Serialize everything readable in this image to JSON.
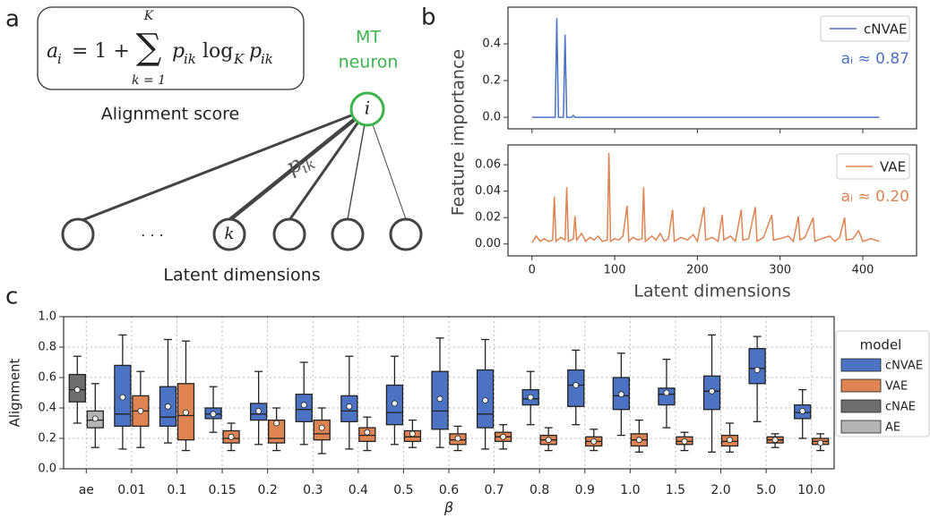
{
  "panel_labels": [
    "a",
    "b",
    "c"
  ],
  "diagram": {
    "formula": [
      "a",
      "i",
      "= 1 +",
      "∑",
      "K",
      "k = 1",
      "p",
      "ik",
      "log",
      "K",
      "p",
      "ik"
    ],
    "formula_caption": "Alignment score",
    "neuron_label": [
      "MT",
      "neuron"
    ],
    "neuron_symbol": "i",
    "weight_label": [
      "p",
      "ik"
    ],
    "latent_symbol": "k",
    "ellipsis": "·     ·     ·",
    "latent_caption": "Latent dimensions"
  },
  "chart_data": [
    {
      "type": "line",
      "x": [
        0,
        28,
        30,
        32,
        38,
        40,
        42,
        48,
        50,
        52,
        420
      ],
      "series": [
        {
          "name": "cNVAE",
          "color": "#4c72c4",
          "values": [
            0,
            0,
            0.54,
            0,
            0,
            0.45,
            0,
            0,
            0.01,
            0,
            0
          ]
        }
      ],
      "annotation": "aᵢ ≈ 0.87",
      "legend": "upper right",
      "xlim": [
        -29,
        465
      ],
      "ylim": [
        -0.063,
        0.6
      ],
      "yticks": [
        {
          "value": 0,
          "label": "0.0"
        },
        {
          "value": 0.2,
          "label": "0.2"
        },
        {
          "value": 0.4,
          "label": "0.4"
        }
      ]
    },
    {
      "type": "line",
      "x_label": "Latent dimensions",
      "y_label": "Feature importance",
      "x": [
        0,
        5,
        10,
        15,
        20,
        25,
        27,
        29,
        35,
        40,
        42,
        44,
        50,
        52,
        54,
        60,
        65,
        70,
        75,
        80,
        85,
        91,
        93,
        95,
        100,
        105,
        110,
        115,
        117,
        122,
        128,
        133,
        135,
        137,
        145,
        150,
        155,
        160,
        165,
        170,
        172,
        180,
        188,
        195,
        200,
        208,
        210,
        218,
        225,
        230,
        232,
        240,
        246,
        253,
        255,
        262,
        270,
        272,
        280,
        290,
        292,
        300,
        310,
        316,
        322,
        324,
        330,
        340,
        342,
        350,
        360,
        366,
        372,
        378,
        380,
        388,
        395,
        400,
        410,
        420
      ],
      "series": [
        {
          "name": "VAE",
          "color": "#dd8452",
          "values": [
            0.001,
            0.006,
            0.002,
            0.004,
            0.002,
            0.003,
            0.036,
            0.002,
            0.005,
            0.003,
            0.043,
            0.002,
            0.004,
            0.021,
            0.003,
            0.008,
            0.002,
            0.005,
            0.003,
            0.006,
            0.002,
            0.003,
            0.069,
            0.002,
            0.004,
            0.003,
            0.006,
            0.029,
            0.002,
            0.005,
            0.003,
            0.004,
            0.043,
            0.002,
            0.006,
            0.003,
            0.008,
            0.002,
            0.004,
            0.026,
            0.002,
            0.005,
            0.003,
            0.007,
            0.002,
            0.028,
            0.003,
            0.005,
            0.002,
            0.022,
            0.003,
            0.006,
            0.002,
            0.026,
            0.003,
            0.004,
            0.028,
            0.002,
            0.005,
            0.022,
            0.003,
            0.004,
            0.006,
            0.002,
            0.021,
            0.003,
            0.005,
            0.02,
            0.002,
            0.004,
            0.006,
            0.002,
            0.005,
            0.02,
            0.003,
            0.004,
            0.01,
            0.002,
            0.004,
            0.002
          ]
        }
      ],
      "annotation": "aᵢ ≈ 0.20",
      "legend": "upper right",
      "xlim": [
        -29,
        465
      ],
      "xticks": [
        0,
        100,
        200,
        300,
        400
      ],
      "ylim": [
        -0.009,
        0.075
      ],
      "yticks": [
        {
          "value": 0,
          "label": "0.00"
        },
        {
          "value": 0.02,
          "label": "0.02"
        },
        {
          "value": 0.04,
          "label": "0.04"
        },
        {
          "value": 0.06,
          "label": "0.06"
        }
      ]
    },
    {
      "type": "box",
      "x_label": "β",
      "y_label": "Alignment",
      "categories": [
        "ae",
        "0.01",
        "0.1",
        "0.15",
        "0.2",
        "0.3",
        "0.4",
        "0.5",
        "0.6",
        "0.7",
        "0.8",
        "0.9",
        "1.0",
        "1.5",
        "2.0",
        "5.0",
        "10.0"
      ],
      "series": [
        {
          "name": "cNVAE",
          "color": "#4c72c4",
          "values": [
            null,
            {
              "min": 0.13,
              "q1": 0.28,
              "median": 0.36,
              "q3": 0.68,
              "max": 0.88,
              "mean": 0.47
            },
            {
              "min": 0.17,
              "q1": 0.28,
              "median": 0.34,
              "q3": 0.54,
              "max": 0.85,
              "mean": 0.41
            },
            {
              "min": 0.24,
              "q1": 0.33,
              "median": 0.36,
              "q3": 0.4,
              "max": 0.54,
              "mean": 0.36
            },
            {
              "min": 0.16,
              "q1": 0.32,
              "median": 0.36,
              "q3": 0.43,
              "max": 0.64,
              "mean": 0.38
            },
            {
              "min": 0.16,
              "q1": 0.31,
              "median": 0.39,
              "q3": 0.49,
              "max": 0.7,
              "mean": 0.42
            },
            {
              "min": 0.13,
              "q1": 0.31,
              "median": 0.38,
              "q3": 0.48,
              "max": 0.74,
              "mean": 0.41
            },
            {
              "min": 0.16,
              "q1": 0.29,
              "median": 0.37,
              "q3": 0.55,
              "max": 0.74,
              "mean": 0.43
            },
            {
              "min": 0.14,
              "q1": 0.26,
              "median": 0.38,
              "q3": 0.64,
              "max": 0.86,
              "mean": 0.46
            },
            {
              "min": 0.13,
              "q1": 0.27,
              "median": 0.36,
              "q3": 0.65,
              "max": 0.85,
              "mean": 0.45
            },
            {
              "min": 0.29,
              "q1": 0.42,
              "median": 0.46,
              "q3": 0.52,
              "max": 0.64,
              "mean": 0.47
            },
            {
              "min": 0.29,
              "q1": 0.41,
              "median": 0.55,
              "q3": 0.65,
              "max": 0.78,
              "mean": 0.55
            },
            {
              "min": 0.22,
              "q1": 0.39,
              "median": 0.48,
              "q3": 0.6,
              "max": 0.76,
              "mean": 0.49
            },
            {
              "min": 0.27,
              "q1": 0.42,
              "median": 0.49,
              "q3": 0.53,
              "max": 0.72,
              "mean": 0.5
            },
            {
              "min": 0.11,
              "q1": 0.39,
              "median": 0.51,
              "q3": 0.61,
              "max": 0.88,
              "mean": 0.51
            },
            {
              "min": 0.31,
              "q1": 0.56,
              "median": 0.66,
              "q3": 0.79,
              "max": 0.87,
              "mean": 0.65
            },
            {
              "min": 0.2,
              "q1": 0.33,
              "median": 0.37,
              "q3": 0.42,
              "max": 0.52,
              "mean": 0.38
            }
          ]
        },
        {
          "name": "VAE",
          "color": "#dd8452",
          "values": [
            null,
            {
              "min": 0.14,
              "q1": 0.28,
              "median": 0.38,
              "q3": 0.48,
              "max": 0.64,
              "mean": 0.38
            },
            {
              "min": 0.12,
              "q1": 0.19,
              "median": 0.35,
              "q3": 0.56,
              "max": 0.84,
              "mean": 0.37
            },
            {
              "min": 0.12,
              "q1": 0.17,
              "median": 0.2,
              "q3": 0.25,
              "max": 0.3,
              "mean": 0.21
            },
            {
              "min": 0.12,
              "q1": 0.17,
              "median": 0.2,
              "q3": 0.32,
              "max": 0.4,
              "mean": 0.3
            },
            {
              "min": 0.1,
              "q1": 0.19,
              "median": 0.23,
              "q3": 0.32,
              "max": 0.4,
              "mean": 0.27
            },
            {
              "min": 0.12,
              "q1": 0.18,
              "median": 0.22,
              "q3": 0.27,
              "max": 0.34,
              "mean": 0.24
            },
            {
              "min": 0.14,
              "q1": 0.18,
              "median": 0.21,
              "q3": 0.25,
              "max": 0.32,
              "mean": 0.23
            },
            {
              "min": 0.12,
              "q1": 0.16,
              "median": 0.19,
              "q3": 0.23,
              "max": 0.28,
              "mean": 0.2
            },
            {
              "min": 0.13,
              "q1": 0.18,
              "median": 0.21,
              "q3": 0.24,
              "max": 0.29,
              "mean": 0.21
            },
            {
              "min": 0.12,
              "q1": 0.16,
              "median": 0.19,
              "q3": 0.22,
              "max": 0.27,
              "mean": 0.19
            },
            {
              "min": 0.12,
              "q1": 0.15,
              "median": 0.18,
              "q3": 0.21,
              "max": 0.26,
              "mean": 0.18
            },
            {
              "min": 0.11,
              "q1": 0.15,
              "median": 0.19,
              "q3": 0.23,
              "max": 0.32,
              "mean": 0.19
            },
            {
              "min": 0.12,
              "q1": 0.16,
              "median": 0.18,
              "q3": 0.21,
              "max": 0.24,
              "mean": 0.18
            },
            {
              "min": 0.11,
              "q1": 0.15,
              "median": 0.18,
              "q3": 0.22,
              "max": 0.3,
              "mean": 0.19
            },
            {
              "min": 0.14,
              "q1": 0.17,
              "median": 0.19,
              "q3": 0.21,
              "max": 0.23,
              "mean": 0.19
            },
            {
              "min": 0.12,
              "q1": 0.16,
              "median": 0.18,
              "q3": 0.2,
              "max": 0.23,
              "mean": 0.17
            }
          ]
        },
        {
          "name": "cNAE",
          "color": "#6e6e6e",
          "values": [
            {
              "min": 0.3,
              "q1": 0.44,
              "median": 0.52,
              "q3": 0.62,
              "max": 0.74,
              "mean": 0.52
            },
            null,
            null,
            null,
            null,
            null,
            null,
            null,
            null,
            null,
            null,
            null,
            null,
            null,
            null,
            null,
            null
          ]
        },
        {
          "name": "AE",
          "color": "#b4b4b4",
          "values": [
            {
              "min": 0.14,
              "q1": 0.27,
              "median": 0.32,
              "q3": 0.38,
              "max": 0.56,
              "mean": 0.33
            },
            null,
            null,
            null,
            null,
            null,
            null,
            null,
            null,
            null,
            null,
            null,
            null,
            null,
            null,
            null,
            null
          ]
        }
      ],
      "legend_title": "model",
      "legend": "outside right",
      "grid": true,
      "ylim": [
        0,
        1
      ],
      "yticks": [
        {
          "value": 0,
          "label": "0.0"
        },
        {
          "value": 0.2,
          "label": "0.2"
        },
        {
          "value": 0.4,
          "label": "0.4"
        },
        {
          "value": 0.6,
          "label": "0.6"
        },
        {
          "value": 0.8,
          "label": "0.8"
        },
        {
          "value": 1,
          "label": "1.0"
        }
      ]
    }
  ]
}
